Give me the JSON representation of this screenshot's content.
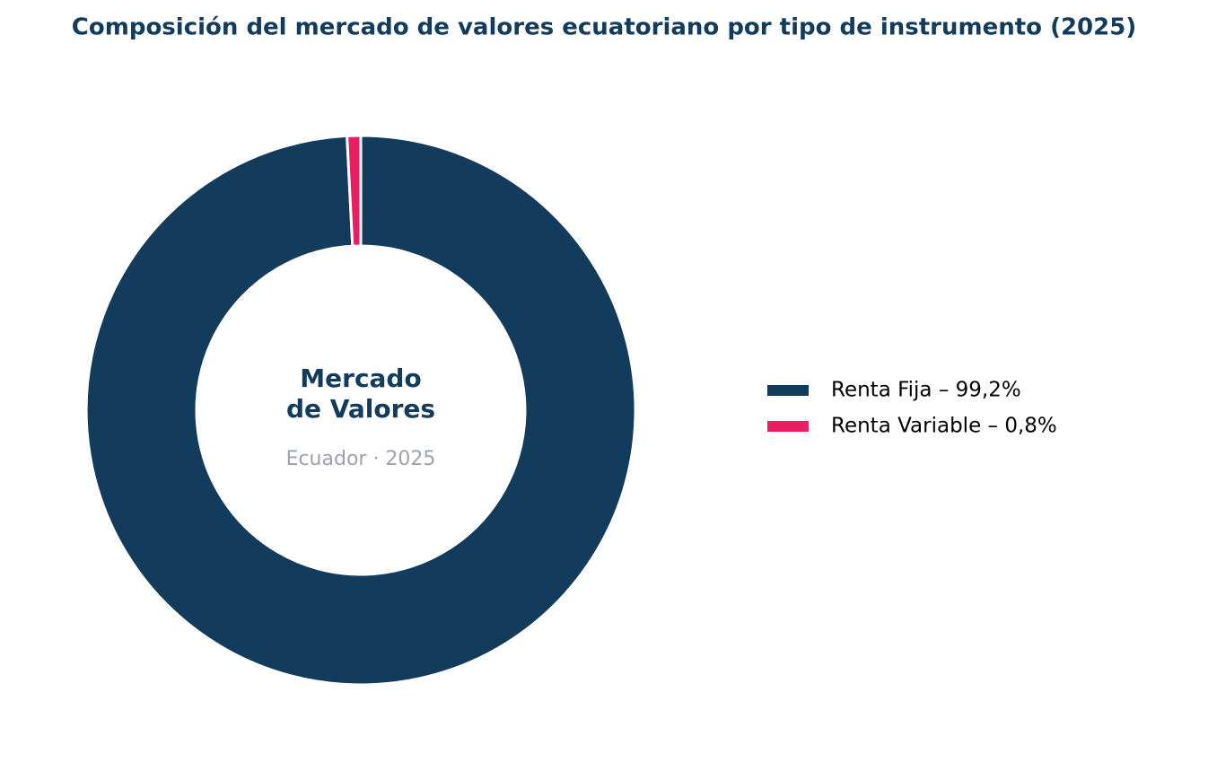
{
  "chart_data": {
    "type": "pie",
    "title": "Composición del mercado de valores ecuatoriano por tipo de instrumento (2025)",
    "categories": [
      "Renta Fija – 99,2%",
      "Renta Variable – 0,8%"
    ],
    "values": [
      99.2,
      0.8
    ],
    "colors": [
      "#123b5c",
      "#e91e63"
    ],
    "center_title": [
      "Mercado",
      "de Valores"
    ],
    "center_subtitle": "Ecuador · 2025"
  }
}
